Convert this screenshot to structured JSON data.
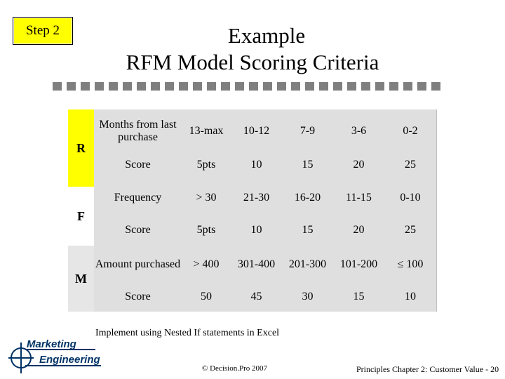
{
  "step_badge": "Step 2",
  "title": {
    "line1": "Example",
    "line2": "RFM Model Scoring Criteria"
  },
  "groups": [
    {
      "letter": "R",
      "rows": [
        {
          "label": "Months from last purchase",
          "values": [
            "13-max",
            "10-12",
            "7-9",
            "3-6",
            "0-2"
          ]
        },
        {
          "label": "Score",
          "values": [
            "5pts",
            "10",
            "15",
            "20",
            "25"
          ]
        }
      ]
    },
    {
      "letter": "F",
      "rows": [
        {
          "label": "Frequency",
          "values": [
            "> 30",
            "21-30",
            "16-20",
            "11-15",
            "0-10"
          ]
        },
        {
          "label": "Score",
          "values": [
            "5pts",
            "10",
            "15",
            "20",
            "25"
          ]
        }
      ]
    },
    {
      "letter": "M",
      "rows": [
        {
          "label": "Amount purchased",
          "values": [
            "> 400",
            "301-400",
            "201-300",
            "101-200",
            "≤ 100"
          ]
        },
        {
          "label": "Score",
          "values": [
            "50",
            "45",
            "30",
            "15",
            "10"
          ]
        }
      ]
    }
  ],
  "note": "Implement using Nested If statements in Excel",
  "copyright": "© Decision.Pro 2007",
  "pager": "Principles Chapter 2: Customer Value - 20",
  "logo": {
    "line1": "Marketing",
    "line2": "Engineering"
  },
  "colors": {
    "highlight": "#ffff00",
    "table_bg": "#dfdfdf",
    "dash": "#7f7f7f",
    "logo": "#003366"
  }
}
